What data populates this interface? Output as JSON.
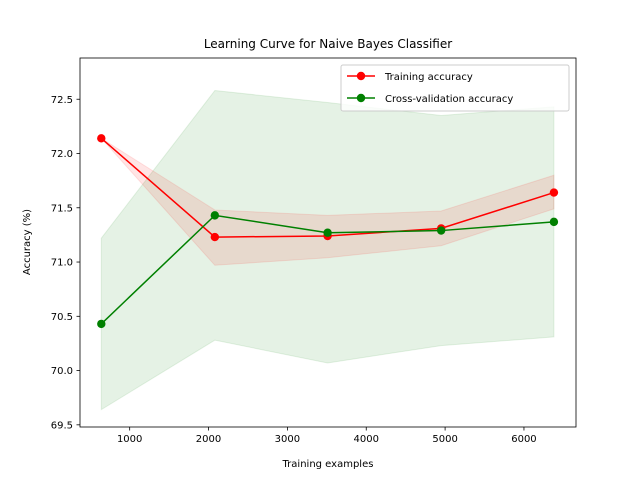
{
  "chart_data": {
    "type": "line",
    "title": "Learning Curve for Naive Bayes Classifier",
    "xlabel": "Training examples",
    "ylabel": "Accuracy (%)",
    "xlim": [
      370,
      6660
    ],
    "ylim": [
      69.48,
      72.88
    ],
    "x_ticks": [
      1000,
      2000,
      3000,
      4000,
      5000,
      6000
    ],
    "y_ticks": [
      69.5,
      70.0,
      70.5,
      71.0,
      71.5,
      72.0,
      72.5
    ],
    "x_tick_labels": [
      "1000",
      "2000",
      "3000",
      "4000",
      "5000",
      "6000"
    ],
    "y_tick_labels": [
      "69.5",
      "70.0",
      "70.5",
      "71.0",
      "71.5",
      "72.0",
      "72.5"
    ],
    "grid": false,
    "legend_position": "top-right",
    "x": [
      640,
      2080,
      3510,
      4950,
      6380
    ],
    "series": [
      {
        "name": "Training accuracy",
        "color": "#ff0000",
        "values": [
          72.14,
          71.23,
          71.24,
          71.31,
          71.64
        ],
        "band_lower": [
          72.14,
          70.97,
          71.04,
          71.15,
          71.49
        ],
        "band_upper": [
          72.14,
          71.48,
          71.43,
          71.47,
          71.8
        ],
        "band_color": "#ff0000"
      },
      {
        "name": "Cross-validation accuracy",
        "color": "#008000",
        "values": [
          70.43,
          71.43,
          71.27,
          71.29,
          71.37
        ],
        "band_lower": [
          69.64,
          70.28,
          70.07,
          70.23,
          70.31
        ],
        "band_upper": [
          71.22,
          72.58,
          72.47,
          72.35,
          72.43
        ],
        "band_color": "#008000"
      }
    ]
  }
}
